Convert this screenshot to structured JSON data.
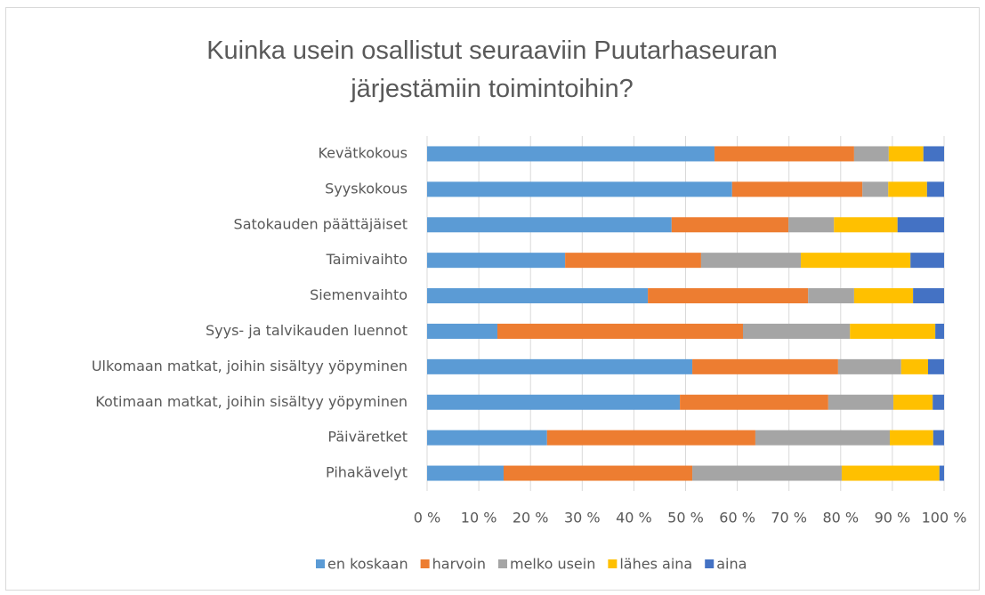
{
  "chart_data": {
    "type": "stacked_bar_horizontal_percent",
    "title": "Kuinka usein osallistut seuraaviin Puutarhaseuran järjestämiin toimintoihin?",
    "categories": [
      "Kevätkokous",
      "Syyskokous",
      "Satokauden päättäjäiset",
      "Taimivaihto",
      "Siemenvaihto",
      "Syys- ja talvikauden luennot",
      "Ulkomaan matkat, joihin sisältyy yöpyminen",
      "Kotimaan matkat, joihin sisältyy yöpyminen",
      "Päiväretket",
      "Pihakävelyt"
    ],
    "series": [
      {
        "name": "en koskaan",
        "color": "#5b9bd5",
        "values": [
          55.6,
          59,
          47.3,
          26.7,
          42.7,
          13.6,
          51.3,
          48.9,
          23.2,
          14.8
        ]
      },
      {
        "name": "harvoin",
        "color": "#ed7d31",
        "values": [
          27,
          25.2,
          22.6,
          26.3,
          31,
          47.5,
          28.2,
          28.7,
          40.3,
          36.5
        ]
      },
      {
        "name": "melko usein",
        "color": "#a5a5a5",
        "values": [
          6.7,
          5,
          8.8,
          19.3,
          8.9,
          20.7,
          12.2,
          12.6,
          26,
          28.9
        ]
      },
      {
        "name": "lähes aina",
        "color": "#ffc000",
        "values": [
          6.7,
          7.5,
          12.3,
          21.2,
          11.4,
          16.5,
          5.2,
          7.6,
          8.4,
          18.9
        ]
      },
      {
        "name": "aina",
        "color": "#4472c4",
        "values": [
          4,
          3.3,
          9,
          6.5,
          6,
          1.7,
          3.1,
          2.2,
          2.1,
          0.9
        ]
      }
    ],
    "xlim": [
      0,
      100
    ],
    "xticks": [
      {
        "value": 0,
        "label": "0 %"
      },
      {
        "value": 10,
        "label": "10 %"
      },
      {
        "value": 20,
        "label": "20 %"
      },
      {
        "value": 30,
        "label": "30 %"
      },
      {
        "value": 40,
        "label": "40 %"
      },
      {
        "value": 50,
        "label": "50 %"
      },
      {
        "value": 60,
        "label": "60 %"
      },
      {
        "value": 70,
        "label": "70 %"
      },
      {
        "value": 80,
        "label": "80 %"
      },
      {
        "value": 90,
        "label": "90 %"
      },
      {
        "value": 100,
        "label": "100 %"
      }
    ],
    "grid": true,
    "legend": "bottom"
  }
}
